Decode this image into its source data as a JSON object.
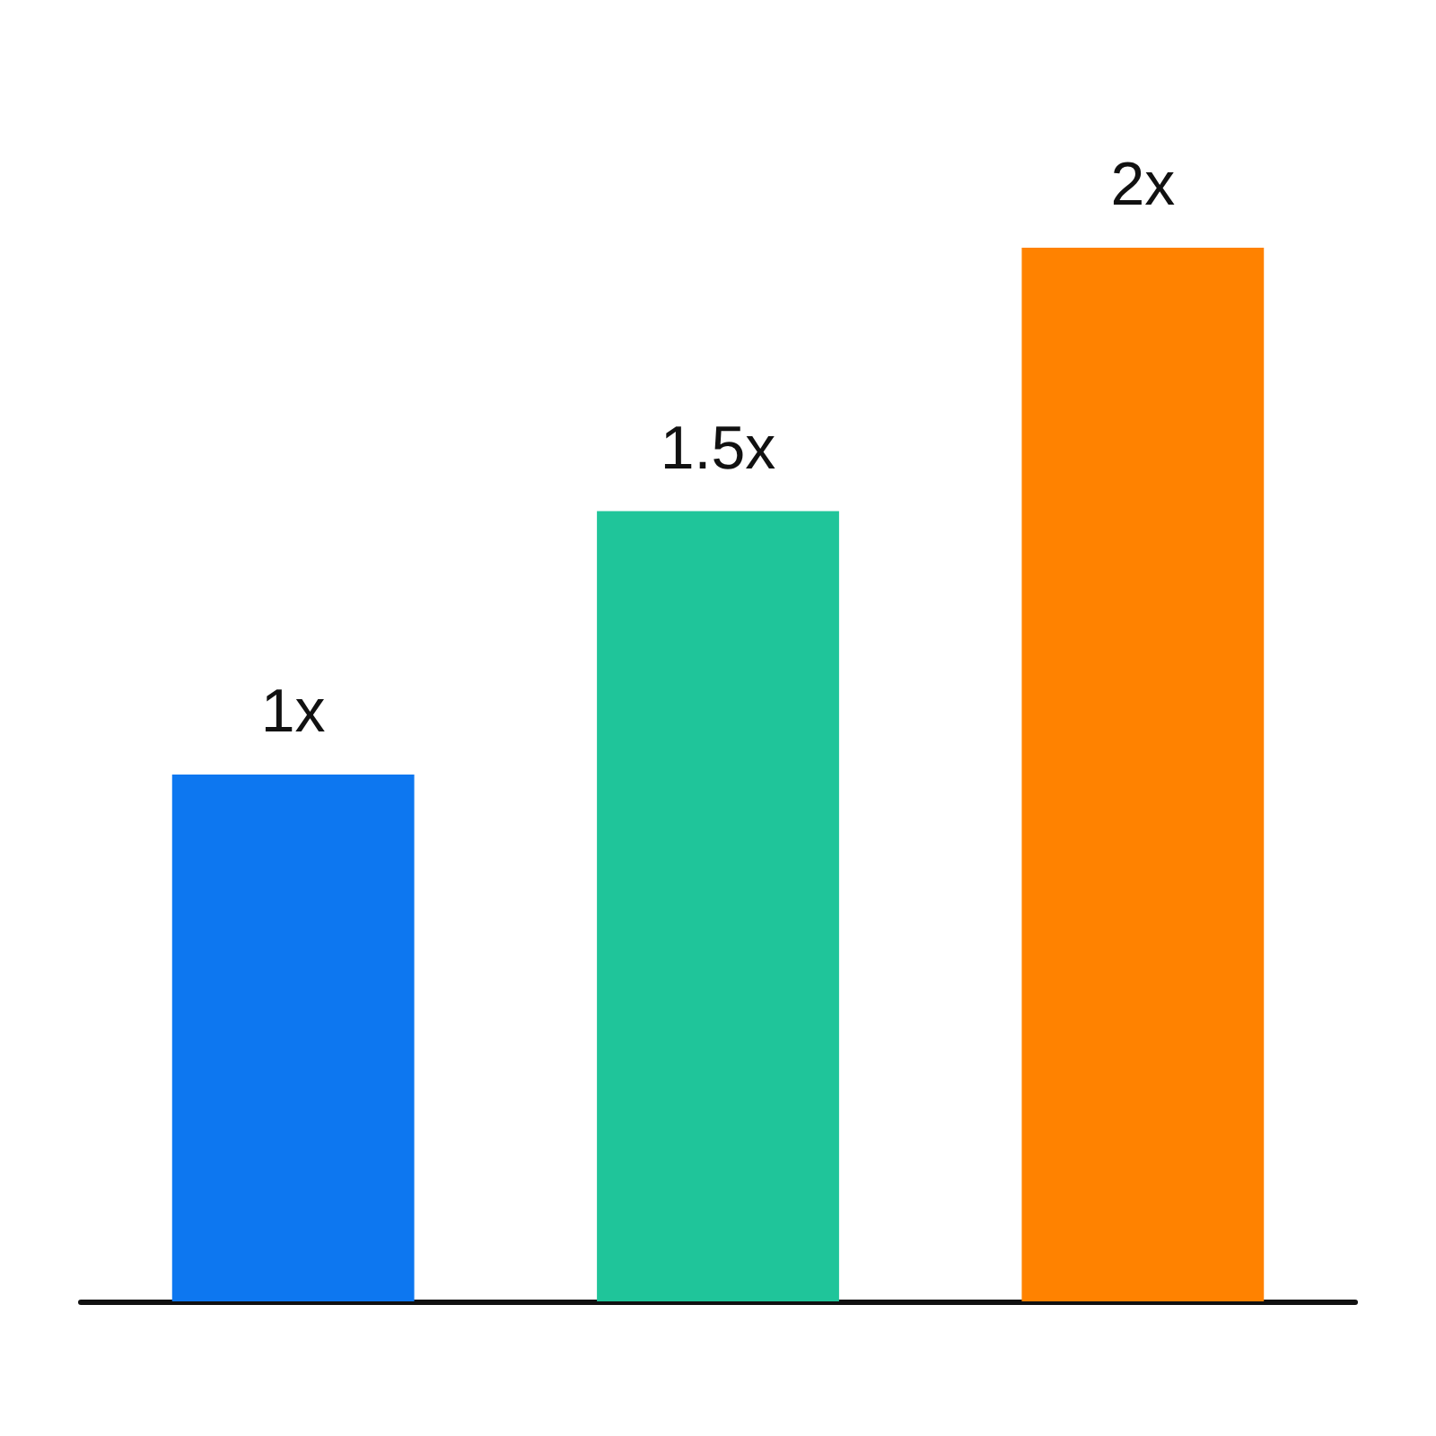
{
  "chart_data": {
    "type": "bar",
    "categories": [
      null,
      null,
      null
    ],
    "values": [
      1,
      1.5,
      2
    ],
    "colors": [
      "#0d77f0",
      "#1fc59a",
      "#ff8200"
    ],
    "value_labels": [
      "1x",
      "1.5x",
      "2x"
    ],
    "grid": false,
    "tick_labels": false
  }
}
